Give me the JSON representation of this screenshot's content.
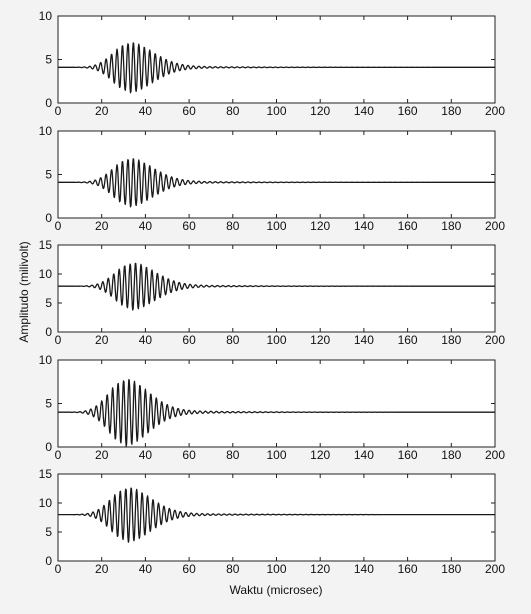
{
  "chart_data": {
    "type": "line",
    "ylabel": "Amplitudo (milivolt)",
    "xlabel": "Waktu (microsec)",
    "xlim": [
      0,
      200
    ],
    "x_ticks": [
      "0",
      "20",
      "40",
      "60",
      "80",
      "100",
      "120",
      "140",
      "160",
      "180",
      "200"
    ],
    "grid": false,
    "panels": [
      {
        "ylim": [
          0,
          10
        ],
        "y_ticks": [
          "0",
          "5",
          "10"
        ],
        "baseline": 4.1,
        "peak_amplitude": 2.7,
        "peak_time": 32,
        "frequency_mhz": 0.4
      },
      {
        "ylim": [
          0,
          10
        ],
        "y_ticks": [
          "0",
          "5",
          "10"
        ],
        "baseline": 4.1,
        "peak_amplitude": 2.6,
        "peak_time": 32,
        "frequency_mhz": 0.4
      },
      {
        "ylim": [
          0,
          15
        ],
        "y_ticks": [
          "0",
          "5",
          "10",
          "15"
        ],
        "baseline": 7.9,
        "peak_amplitude": 3.8,
        "peak_time": 33,
        "frequency_mhz": 0.4
      },
      {
        "ylim": [
          0,
          10
        ],
        "y_ticks": [
          "0",
          "5",
          "10"
        ],
        "baseline": 4.0,
        "peak_amplitude": 3.6,
        "peak_time": 30,
        "frequency_mhz": 0.4
      },
      {
        "ylim": [
          0,
          15
        ],
        "y_ticks": [
          "0",
          "5",
          "10",
          "15"
        ],
        "baseline": 8.0,
        "peak_amplitude": 4.4,
        "peak_time": 31,
        "frequency_mhz": 0.4
      }
    ]
  }
}
